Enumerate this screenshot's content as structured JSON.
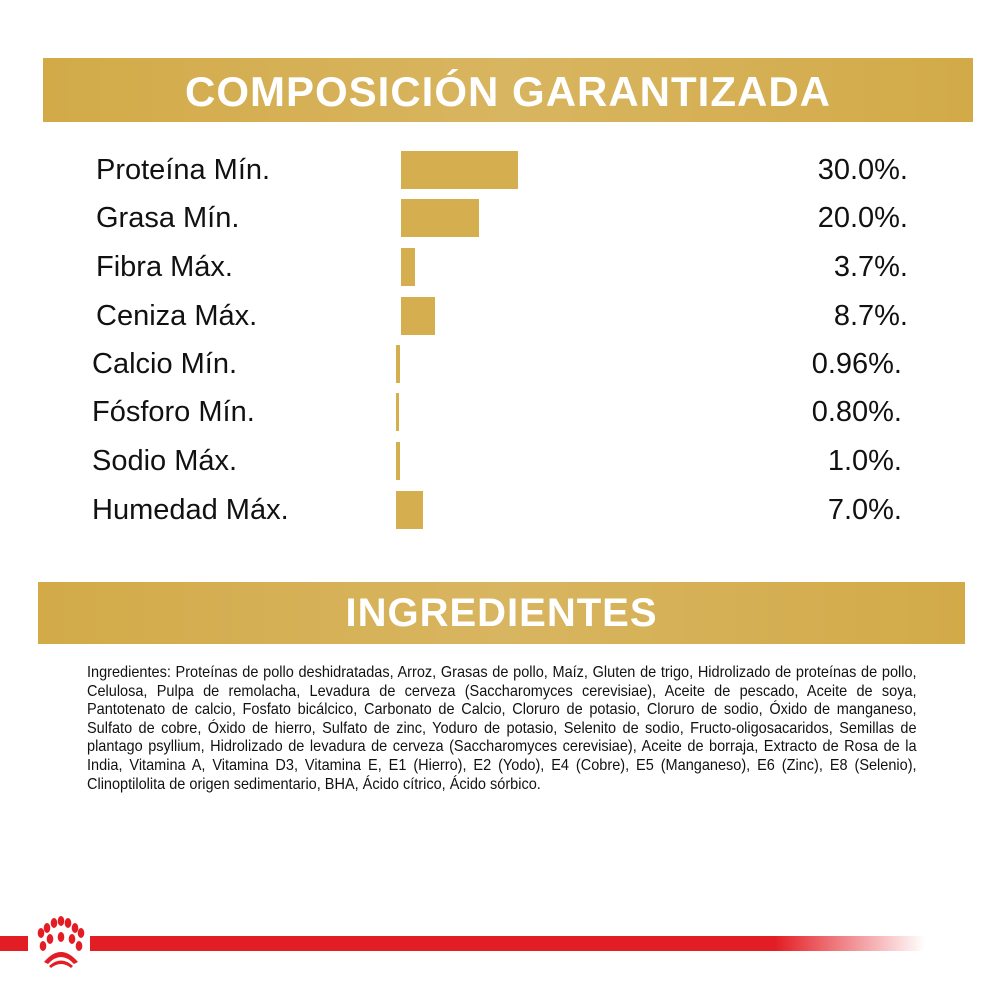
{
  "composition": {
    "title": "COMPOSICIÓN GARANTIZADA",
    "bar_color": "#d4ae4f"
  },
  "chart_data": {
    "type": "bar",
    "orientation": "horizontal",
    "title": "COMPOSICIÓN GARANTIZADA",
    "categories": [
      "Proteína Mín.",
      "Grasa Mín.",
      "Fibra Máx.",
      "Ceniza Máx.",
      "Calcio Mín.",
      "Fósforo Mín.",
      "Sodio Máx.",
      "Humedad Máx."
    ],
    "values": [
      30.0,
      20.0,
      3.7,
      8.7,
      0.96,
      0.8,
      1.0,
      7.0
    ],
    "value_labels": [
      "30.0%.",
      "20.0%.",
      "3.7%.",
      "8.7%.",
      "0.96%.",
      "0.80%.",
      "1.0%.",
      "7.0%."
    ],
    "unit": "%"
  },
  "ingredients": {
    "title": "INGREDIENTES",
    "text": "Ingredientes: Proteínas de pollo deshidratadas, Arroz, Grasas  de pollo, Maíz, Gluten de trigo, Hidrolizado de proteínas de pollo, Celulosa, Pulpa de remolacha, Levadura de cerveza (Saccharomyces cerevisiae), Aceite de pescado, Aceite de soya, Pantotenato de calcio, Fosfato bicálcico, Carbonato de Calcio, Cloruro de potasio, Cloruro de sodio, Óxido de manganeso, Sulfato de cobre, Óxido de hierro, Sulfato de zinc, Yoduro de potasio, Selenito de sodio, Fructo-oligosacaridos, Semillas de plantago psyllium, Hidrolizado de levadura de cerveza (Saccharomyces cerevisiae), Aceite de borraja, Extracto de Rosa de la India, Vitamina A, Vitamina D3, Vitamina E, E1 (Hierro), E2 (Yodo), E4 (Cobre), E5 (Manganeso), E6 (Zinc), E8 (Selenio), Clinoptilolita de origen sedimentario, BHA, Ácido cítrico, Ácido sórbico."
  },
  "brand": {
    "logo": "royal-canin-crown-icon",
    "color": "#e31d24"
  }
}
